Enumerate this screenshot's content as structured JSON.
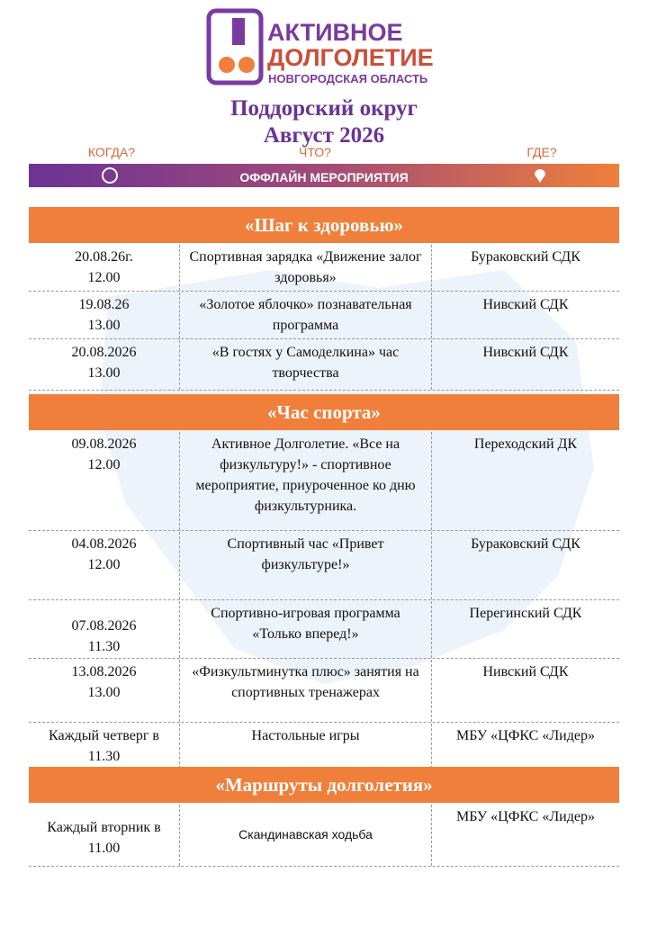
{
  "logo": {
    "line1": "АКТИВНОЕ",
    "line2": "ДОЛГОЛЕТИЕ",
    "line3": "НОВГОРОДСКАЯ ОБЛАСТЬ"
  },
  "header": {
    "title": "Поддорский округ",
    "subtitle": "Август 2026"
  },
  "banner": {
    "when": "КОГДА?",
    "what": "ЧТО?",
    "where": "ГДЕ?",
    "label": "ОФФЛАЙН МЕРОПРИЯТИЯ"
  },
  "sections": [
    {
      "title": "«Шаг к здоровью»",
      "rows": [
        {
          "date": "20.08.26г.",
          "time": "12.00",
          "event": "Спортивная зарядка «Движение залог здоровья»",
          "place": "Бураковский СДК"
        },
        {
          "date": "19.08.26",
          "time": "13.00",
          "event": "«Золотое яблочко» познавательная программа",
          "place": "Нивский СДК"
        },
        {
          "date": "20.08.2026",
          "time": "13.00",
          "event": "«В гостях у Самоделкина» час творчества",
          "place": "Нивский СДК"
        }
      ]
    },
    {
      "title": "«Час спорта»",
      "rows": [
        {
          "date": "09.08.2026",
          "time": "12.00",
          "event": "Активное Долголетие. «Все на физкультуру!» - спортивное мероприятие, приуроченное ко дню физкультурника.",
          "place": "Переходский ДК"
        },
        {
          "date": "04.08.2026",
          "time": "12.00",
          "event": "Спортивный час «Привет физкультуре!»",
          "place": "Бураковский СДК"
        },
        {
          "date": "07.08.2026",
          "time": "11.30",
          "event": "Спортивно-игровая программа «Только вперед!»",
          "place": "Перегинский СДК"
        },
        {
          "date": "13.08.2026",
          "time": "13.00",
          "event": "«Физкультминутка плюс» занятия на спортивных тренажерах",
          "place": "Нивский СДК"
        },
        {
          "date": "Каждый четверг в",
          "time": "11.30",
          "event": "Настольные игры",
          "place": "МБУ «ЦФКС «Лидер»"
        }
      ]
    },
    {
      "title": "«Маршруты долголетия»",
      "rows": [
        {
          "date": "Каждый вторник в",
          "time": "11.00",
          "event": "Скандинавская ходьба",
          "place": "МБУ «ЦФКС «Лидер»"
        }
      ]
    }
  ]
}
